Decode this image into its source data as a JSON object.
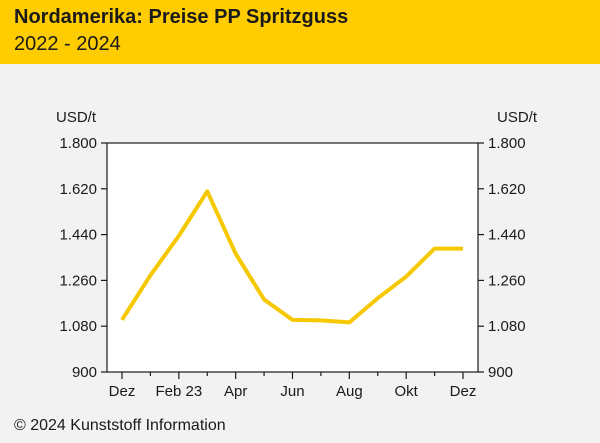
{
  "header": {
    "title": "Nordamerika: Preise PP Spritzguss",
    "subtitle": "2022 - 2024"
  },
  "footer": {
    "copyright": "© 2024 Kunststoff Information"
  },
  "colors": {
    "header_bg": "#ffcc00",
    "line": "#f5c800",
    "background": "#f2f2f2",
    "plot_bg": "#ffffff"
  },
  "chart_data": {
    "type": "line",
    "title": "",
    "ylabel_left": "USD/t",
    "ylabel_right": "USD/t",
    "ylim": [
      900,
      1800
    ],
    "yticks": [
      900,
      1080,
      1260,
      1440,
      1620,
      1800
    ],
    "ytick_labels": [
      "900",
      "1.080",
      "1.260",
      "1.440",
      "1.620",
      "1.800"
    ],
    "xtick_labels": [
      "Dez",
      "Feb 23",
      "Apr",
      "Jun",
      "Aug",
      "Okt",
      "Dez"
    ],
    "x": [
      "Dez 22",
      "Jan 23",
      "Feb 23",
      "Mär 23",
      "Apr 23",
      "Mai 23",
      "Jun 23",
      "Jul 23",
      "Aug 23",
      "Sep 23",
      "Okt 23",
      "Nov 23",
      "Dez 23"
    ],
    "series": [
      {
        "values": [
          1105,
          1280,
          1435,
          1610,
          1365,
          1185,
          1105,
          1103,
          1095,
          1190,
          1275,
          1385,
          1385
        ]
      }
    ],
    "grid": false,
    "legend": "none"
  }
}
